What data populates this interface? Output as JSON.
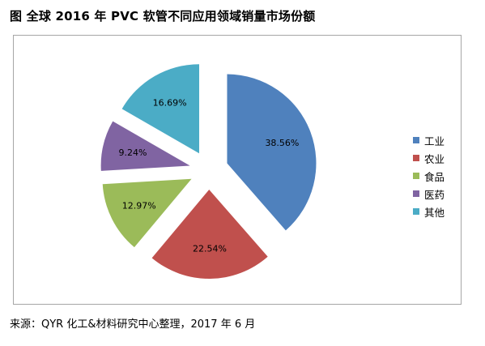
{
  "title": "图  全球 2016 年 PVC 软管不同应用领域销量市场份额",
  "source": "来源：QYR 化工&材料研究中心整理，2017 年 6 月",
  "chart_data": {
    "type": "pie",
    "exploded": true,
    "legend_position": "right",
    "slices": [
      {
        "label": "工业",
        "value": 38.56,
        "display": "38.56%",
        "color": "#4f81bd"
      },
      {
        "label": "农业",
        "value": 22.54,
        "display": "22.54%",
        "color": "#c0504d"
      },
      {
        "label": "食品",
        "value": 12.97,
        "display": "12.97%",
        "color": "#9bbb59"
      },
      {
        "label": "医药",
        "value": 9.24,
        "display": "9.24%",
        "color": "#8064a2"
      },
      {
        "label": "其他",
        "value": 16.69,
        "display": "16.69%",
        "color": "#4bacc6"
      }
    ]
  }
}
